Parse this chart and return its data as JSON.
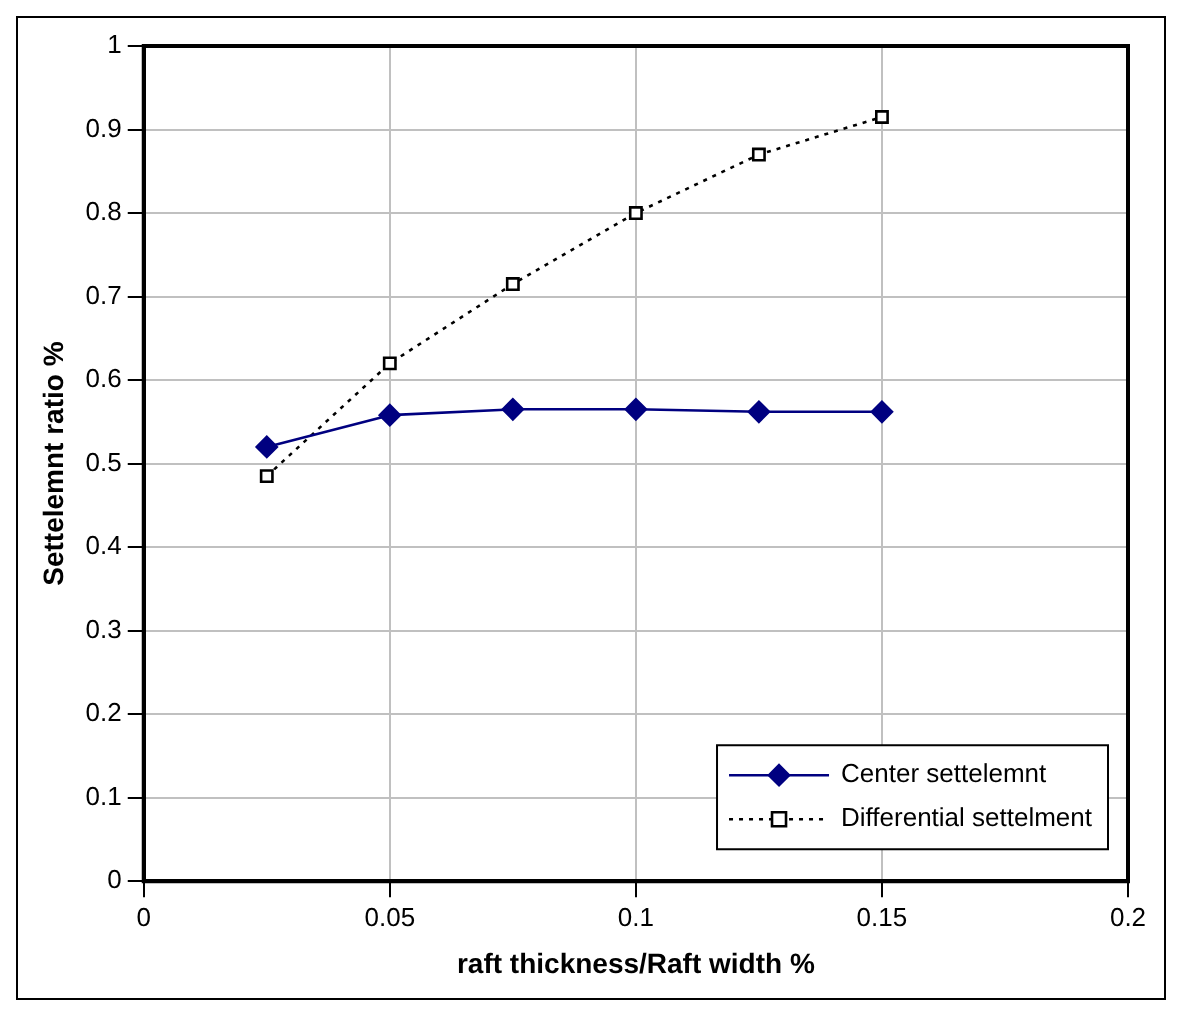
{
  "chart_data": {
    "type": "line",
    "xlabel": "raft thickness/Raft width %",
    "ylabel": "Settelemnt ratio %",
    "x": [
      0.025,
      0.05,
      0.075,
      0.1,
      0.125,
      0.15
    ],
    "series": [
      {
        "name": "Center settelemnt",
        "color": "#000080",
        "values": [
          0.52,
          0.558,
          0.565,
          0.565,
          0.562,
          0.562
        ],
        "marker": "diamond",
        "line_style": "solid"
      },
      {
        "name": "Differential settelment",
        "color": "#000000",
        "values": [
          0.485,
          0.62,
          0.715,
          0.8,
          0.87,
          0.915
        ],
        "marker": "square",
        "line_style": "dotted"
      }
    ],
    "xlim": [
      0,
      0.2
    ],
    "xticks": [
      0,
      0.05,
      0.1,
      0.15,
      0.2
    ],
    "ylim": [
      0,
      1
    ],
    "yticks": [
      0,
      0.1,
      0.2,
      0.3,
      0.4,
      0.5,
      0.6,
      0.7,
      0.8,
      0.9,
      1
    ],
    "grid": true,
    "legend": "bottom right"
  }
}
